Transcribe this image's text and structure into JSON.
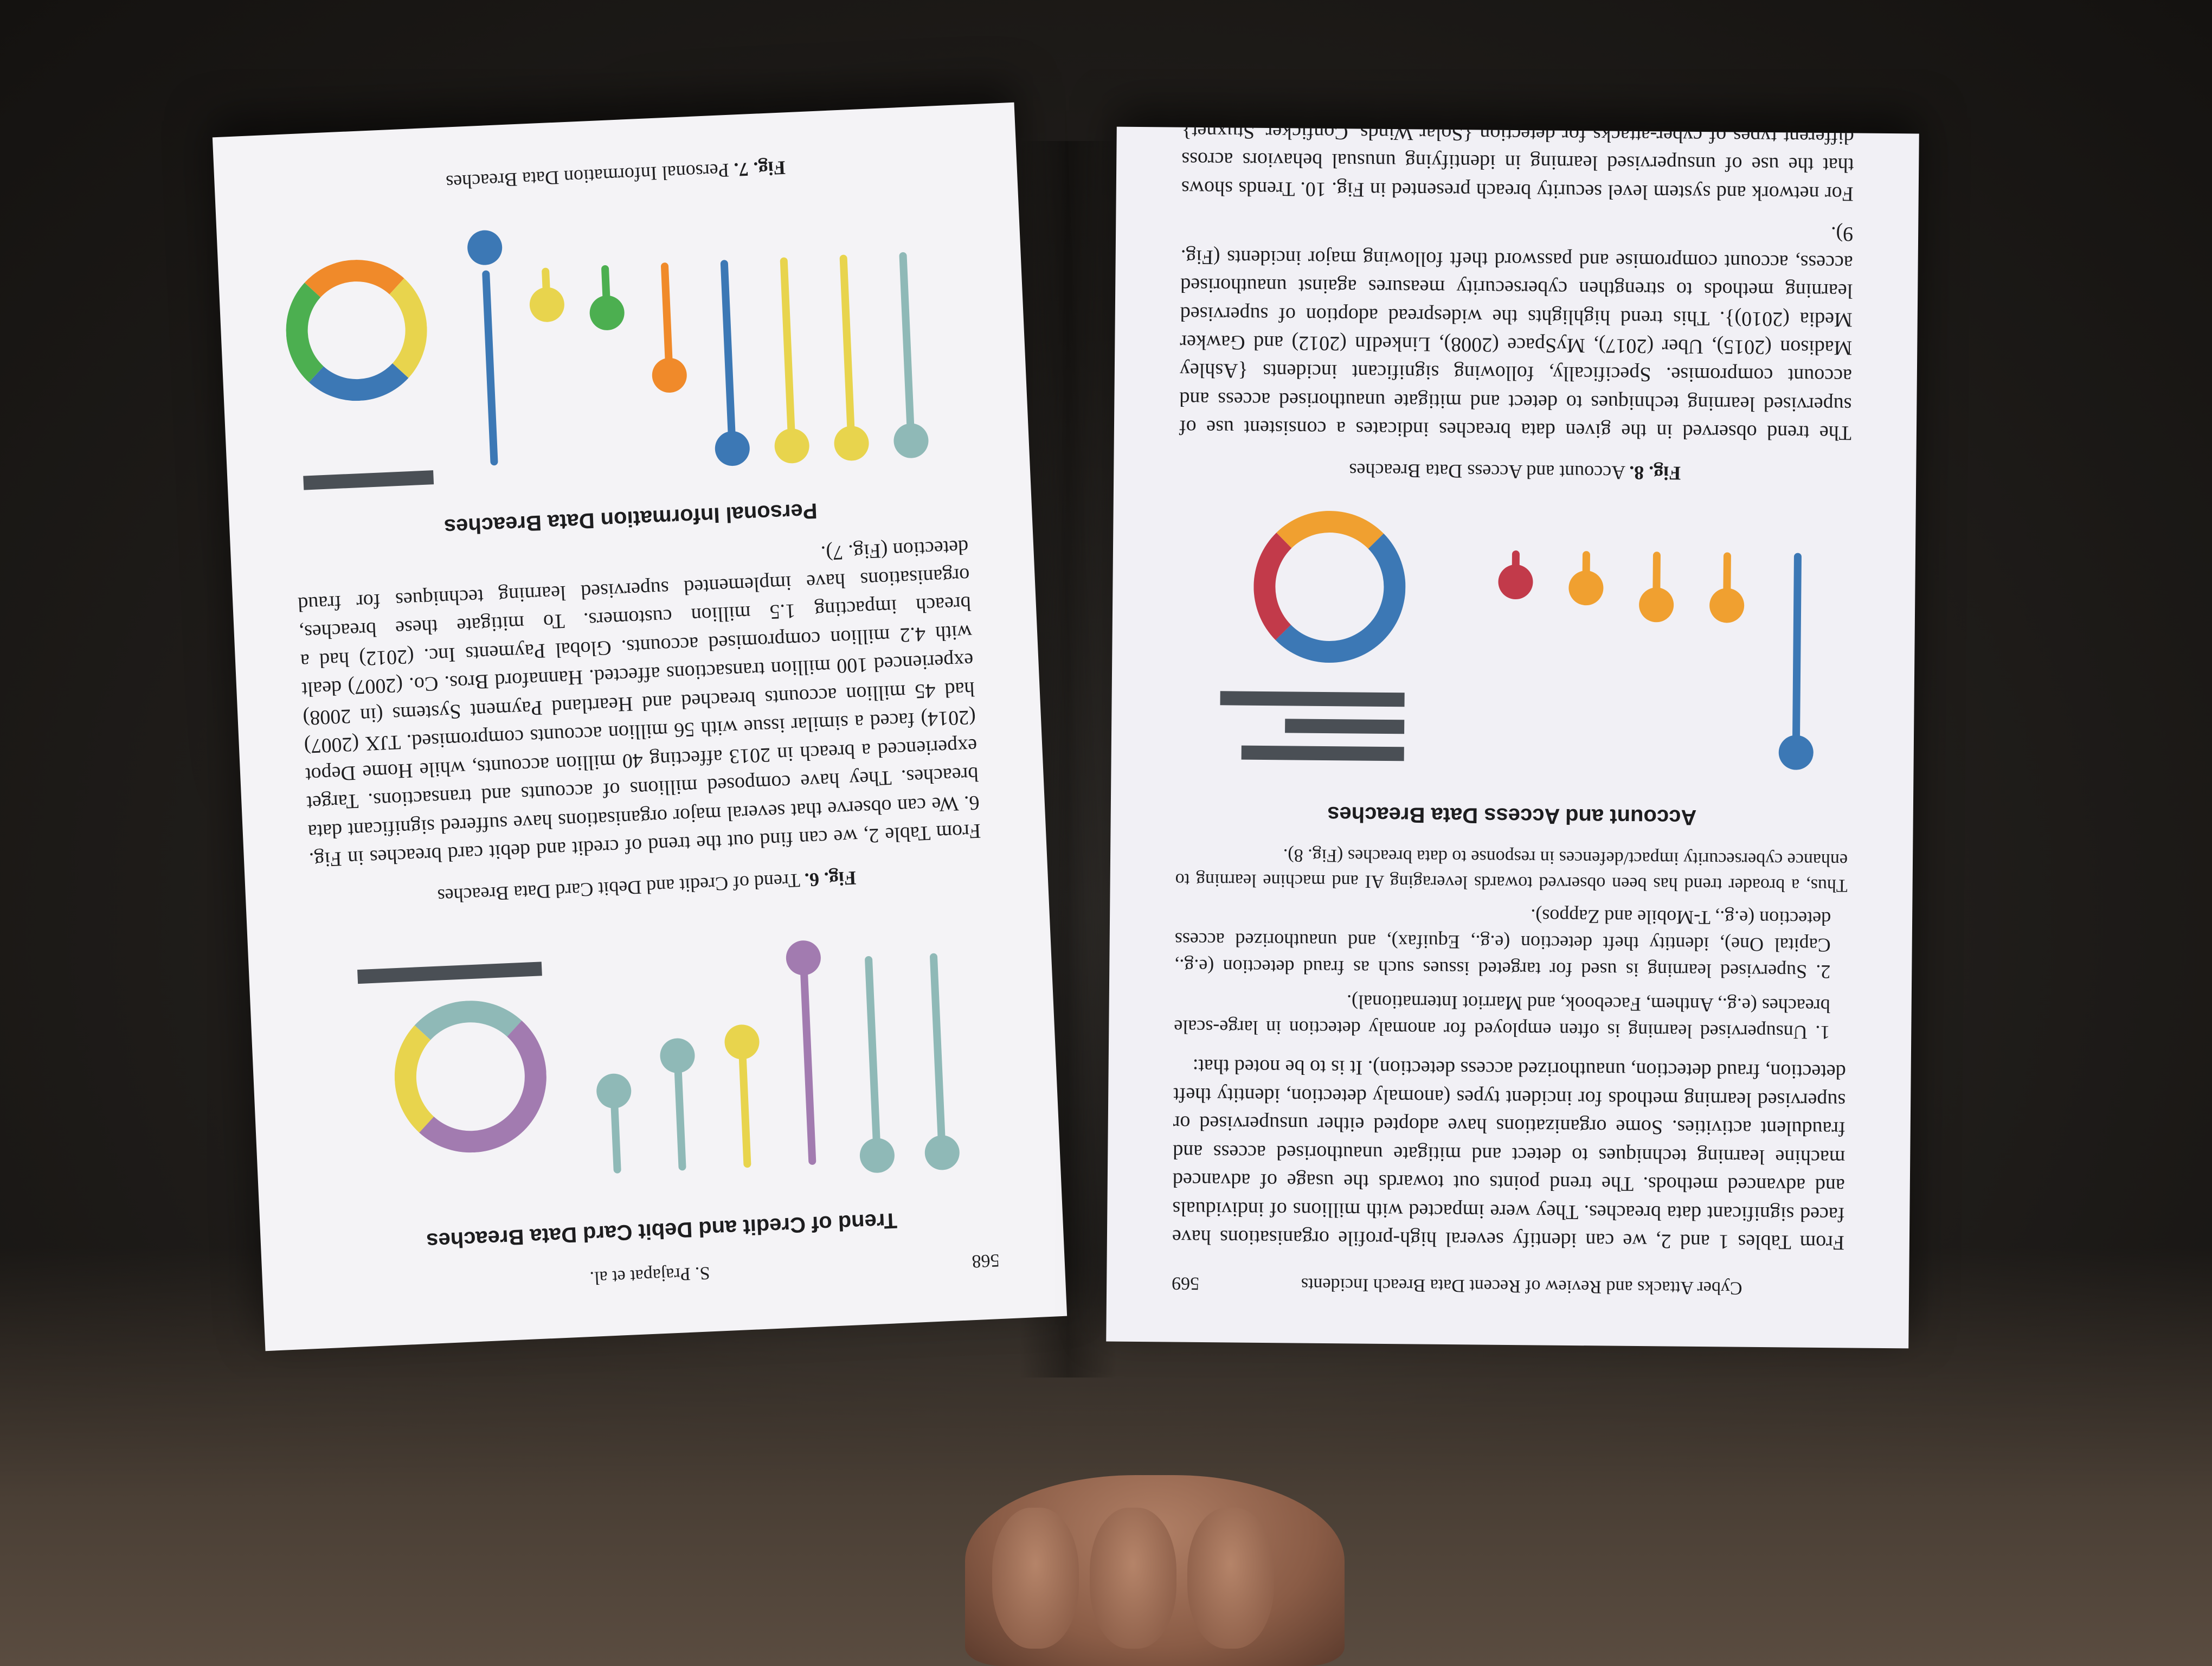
{
  "left_page": {
    "page_number": "568",
    "running_head": "S. Prajapat et al.",
    "fig6": {
      "chart_title": "Trend of Credit and Debit Card Data Breaches",
      "caption_label": "Fig. 6.",
      "caption_text": "Trend of Credit and Debit Card Data Breaches"
    },
    "paragraph_1": "From Table 2, we can find out the trend of credit and debit card breaches in Fig. 6. We can observe that several major organisations have suffered significant data breaches. They have composed millions of accounts and transactions. Target experienced a breach in 2013 affecting 40 million accounts, while Home Depot (2014) faced a similar issue with 56 million accounts compromised. TJX (2007) had 45 million accounts breached and Heartland Payment Systems (in 2008) experienced 100 million transactions affected. Hannaford Bros. Co. (2007) dealt with 4.2 million compromised accounts. Global Payments Inc. (2012) had a breach impacting 1.5 million customers. To mitigate these breaches, organisations have implemented supervised learning techniques for fraud detection (Fig. 7).",
    "fig7": {
      "chart_title": "Personal Information Data Breaches",
      "caption_label": "Fig. 7.",
      "caption_text": "Personal Information Data Breaches"
    }
  },
  "right_page": {
    "page_number": "569",
    "running_head": "Cyber Attacks and Review of Recent Data Breach Incidents",
    "paragraph_1": "From Tables 1 and 2, we can identify several high-profile organisations have faced significant data breaches. They were impacted with millions of individuals and advanced methods. The trend points out towards the usage of advanced machine learning techniques to detect and mitigate unauthorised access and fraudulent activities. Some organizations have adopted either unsupervised or supervised learning methods for incident types (anomaly detection, identity theft detection, fraud detection, unauthorized access detection). It is to be noted that:",
    "list_1": "1. Unsupervised learning is often employed for anomaly detection in large-scale breaches (e.g., Anthem, Facebook, and Marriot International).",
    "list_2": "2. Supervised learning is used for targeted issues such as fraud detection (e.g., Capital One), identity theft detection (e.g., Equifax), and unauthorized access detection (e.g., T-Mobile and Zappos).",
    "paragraph_2": "Thus, a broader trend has been observed towards leveraging AI and machine learning to enhance cybersecurity impact/defences in response to data breaches (Fig. 8).",
    "fig8": {
      "chart_title": "Account and Access Data Breaches",
      "caption_label": "Fig. 8.",
      "caption_text": "Account and Access Data Breaches"
    },
    "paragraph_3": "The trend observed in the given data breaches indicates a consistent use of supervised learning techniques to detect and mitigate unauthorised access and account compromise. Specifically, following significant incidents {Ashley Madison (2015), Uber (2017), MySpace (2008), LinkedIn (2012) and Gawker Media (2010)}. This trend highlights the widespread adoption of supervised learning methods to strengthen cybersecurity measures against unauthorised access, account compromise and password theft following major incidents (Fig. 9).",
    "paragraph_4": "For network and system level security breach presented in Fig. 10. Trends shows that the use of unsupervised learning in identifying unusual behaviors across different types of cyber-attacks for detection {Solar Winds, Conficker, Stuxnet} while supervised learning is specifically applied to ransomware detection e.g. Colonial Pipeline, theft of intellectual property etc. Supervised learning for targeted attack detection (Google"
  },
  "colors": {
    "paper": "#f4f3f6",
    "blue": "#3c78b5",
    "teal": "#8fb9b7",
    "yellow": "#e8d44d",
    "purple": "#a27bb0",
    "orange": "#f08a2a",
    "green": "#4caf50",
    "red": "#c23a4a",
    "amber": "#f0a030",
    "dark_bar": "#4a4f55"
  }
}
